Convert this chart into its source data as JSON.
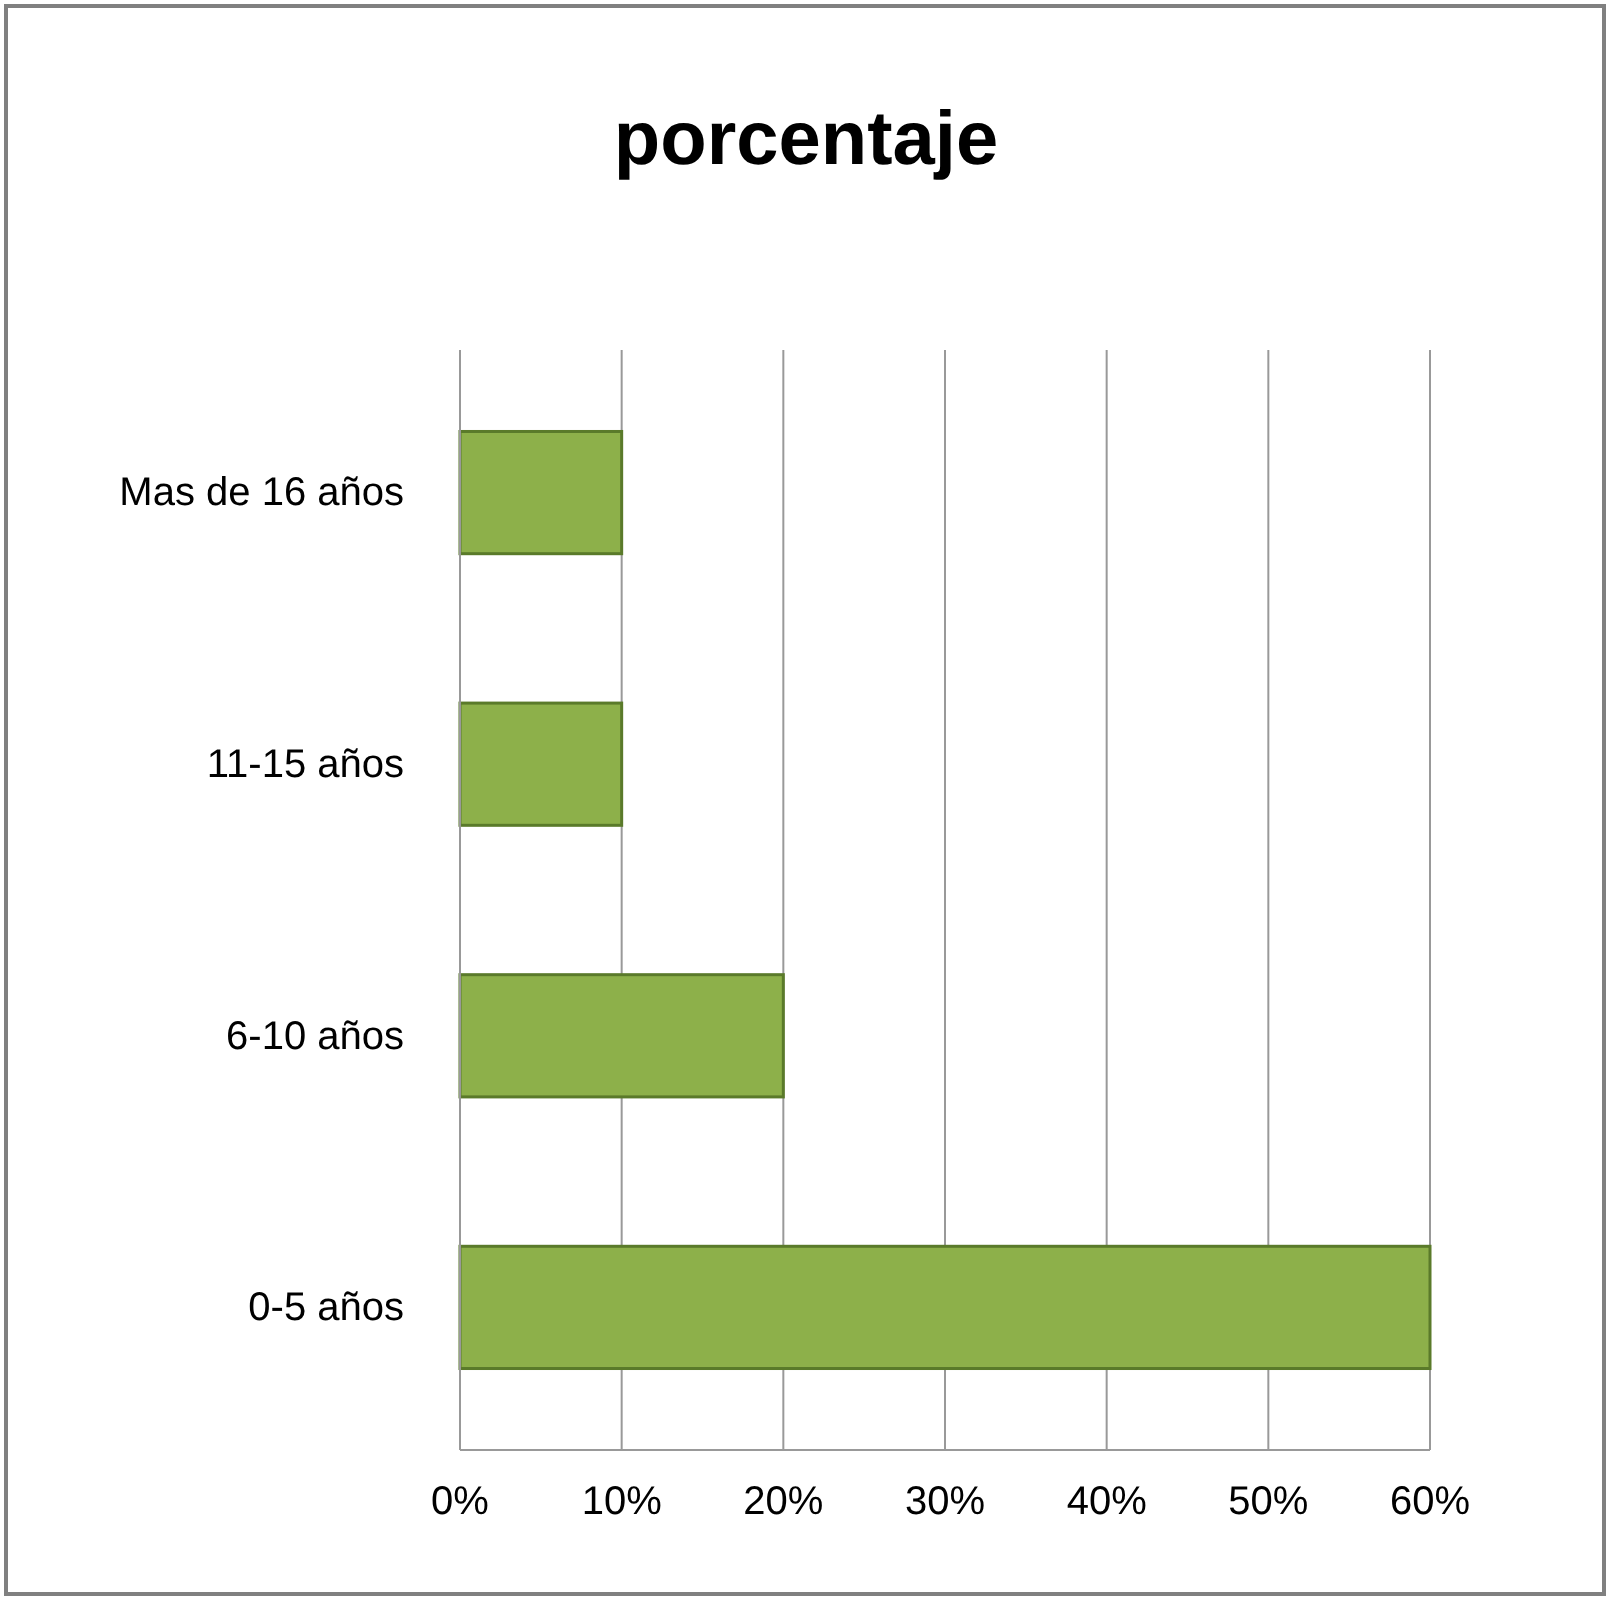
{
  "chart_data": {
    "type": "bar",
    "orientation": "horizontal",
    "title": "porcentaje",
    "categories": [
      "Mas de 16 años",
      "11-15 años",
      "6-10 años",
      "0-5 años"
    ],
    "values": [
      10,
      10,
      20,
      60
    ],
    "color": "#8db04a",
    "xlim": [
      0,
      60
    ],
    "xticks": [
      {
        "value": 0,
        "label": "0%"
      },
      {
        "value": 10,
        "label": "10%"
      },
      {
        "value": 20,
        "label": "20%"
      },
      {
        "value": 30,
        "label": "30%"
      },
      {
        "value": 40,
        "label": "40%"
      },
      {
        "value": 50,
        "label": "50%"
      },
      {
        "value": 60,
        "label": "60%"
      }
    ],
    "grid": "x"
  }
}
